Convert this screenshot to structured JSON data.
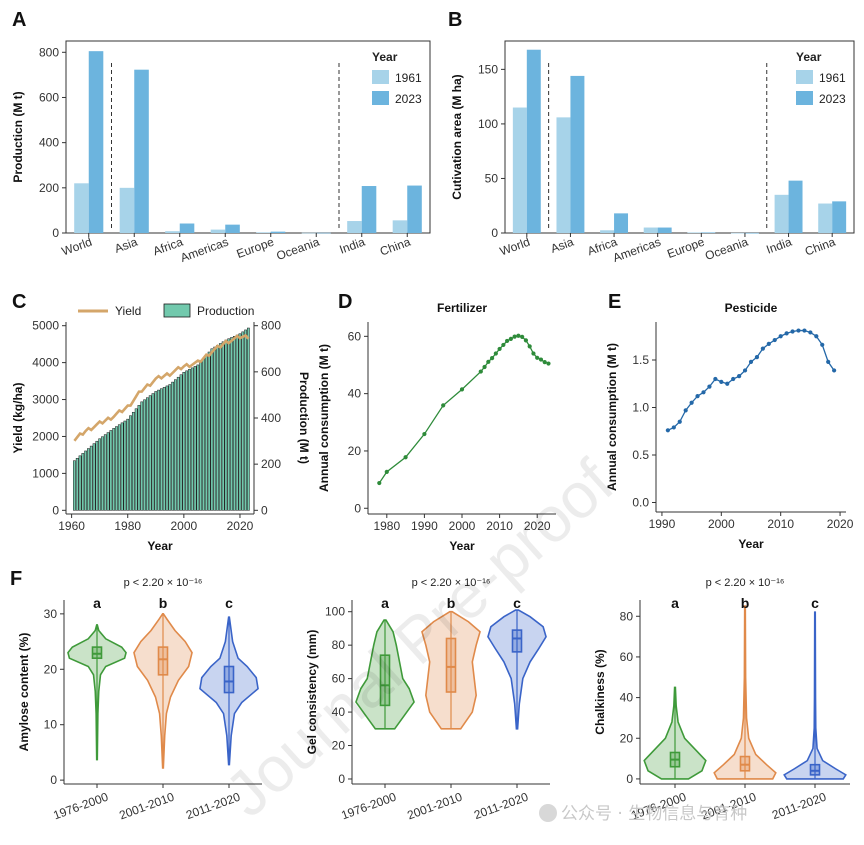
{
  "panel_labels": {
    "a": "A",
    "b": "B",
    "c": "C",
    "d": "D",
    "e": "E",
    "f": "F"
  },
  "watermark": "Journal Pre-proof",
  "wechat_caption": "公众号 · 生物信息与育种",
  "colors": {
    "light_blue": "#a7d3e9",
    "blue": "#6cb4de",
    "yield": "#d4a66a",
    "production": "#72c9ad",
    "fert": "#2e8b3a",
    "pest": "#2468a8",
    "v1": "#3f9a3a",
    "v2": "#e08a4a",
    "v3": "#3a64c8"
  },
  "chart_data": [
    {
      "panel": "A",
      "type": "bar",
      "ylabel": "Producticn (M t)",
      "ylim": [
        0,
        850
      ],
      "yticks": [
        0,
        200,
        400,
        600,
        800
      ],
      "categories": [
        "World",
        "Asia",
        "Africa",
        "Americas",
        "Europe",
        "Oceania",
        "India",
        "China"
      ],
      "series": [
        {
          "name": "1961",
          "values": [
            220,
            200,
            8,
            15,
            3,
            1,
            53,
            56
          ]
        },
        {
          "name": "2023",
          "values": [
            805,
            723,
            42,
            37,
            6,
            1,
            208,
            210
          ]
        }
      ],
      "legend_title": "Year",
      "legend_position": "top-right"
    },
    {
      "panel": "B",
      "type": "bar",
      "ylabel": "Cutivation area (M ha)",
      "ylim": [
        0,
        176
      ],
      "yticks": [
        0,
        50,
        100,
        150
      ],
      "categories": [
        "World",
        "Asia",
        "Africa",
        "Americas",
        "Europe",
        "Oceania",
        "India",
        "China"
      ],
      "series": [
        {
          "name": "1961",
          "values": [
            115,
            106,
            2.5,
            5,
            0.5,
            0.1,
            35,
            27
          ]
        },
        {
          "name": "2023",
          "values": [
            168,
            144,
            18,
            5,
            0.5,
            0.1,
            48,
            29
          ]
        }
      ],
      "legend_title": "Year",
      "legend_position": "top-right"
    },
    {
      "panel": "C",
      "type": "bar",
      "xlabel": "Year",
      "ylabel": "Yield (kg/ha)",
      "ylabel_right": "Production (M t)",
      "xlim": [
        1958,
        2025
      ],
      "xticks": [
        1960,
        1980,
        2000,
        2020
      ],
      "ylim": [
        -100,
        5100
      ],
      "yticks": [
        0,
        1000,
        2000,
        3000,
        4000,
        5000
      ],
      "ylim_right": [
        -16,
        816
      ],
      "yticks_right": [
        0,
        200,
        400,
        600,
        800
      ],
      "legend": [
        "Yield",
        "Production"
      ],
      "legend_position": "top",
      "production_x": [
        1961,
        2023
      ],
      "production_anchors": [
        [
          1961,
          215
        ],
        [
          1970,
          310
        ],
        [
          1975,
          355
        ],
        [
          1980,
          395
        ],
        [
          1985,
          470
        ],
        [
          1990,
          515
        ],
        [
          1995,
          545
        ],
        [
          2000,
          598
        ],
        [
          2005,
          630
        ],
        [
          2010,
          700
        ],
        [
          2015,
          738
        ],
        [
          2020,
          765
        ],
        [
          2023,
          790
        ]
      ],
      "yield_anchors": [
        [
          1961,
          1900
        ],
        [
          1965,
          2150
        ],
        [
          1970,
          2350
        ],
        [
          1975,
          2550
        ],
        [
          1980,
          2800
        ],
        [
          1985,
          3250
        ],
        [
          1990,
          3550
        ],
        [
          1995,
          3700
        ],
        [
          2000,
          3900
        ],
        [
          2005,
          4000
        ],
        [
          2010,
          4300
        ],
        [
          2015,
          4550
        ],
        [
          2020,
          4700
        ],
        [
          2023,
          4700
        ]
      ]
    },
    {
      "panel": "D",
      "type": "line",
      "title": "Fertilizer",
      "xlabel": "Year",
      "ylabel": "Annual consumption (M t)",
      "xlim": [
        1975,
        2025
      ],
      "xticks": [
        1980,
        1990,
        2000,
        2010,
        2020
      ],
      "ylim": [
        -2,
        65
      ],
      "yticks": [
        0,
        20,
        40,
        60
      ],
      "x": [
        1978,
        1980,
        1985,
        1990,
        1995,
        2000,
        2005,
        2006,
        2007,
        2008,
        2009,
        2010,
        2011,
        2012,
        2013,
        2014,
        2015,
        2016,
        2017,
        2018,
        2019,
        2020,
        2021,
        2022,
        2023
      ],
      "y": [
        8.8,
        12.7,
        17.8,
        25.9,
        35.9,
        41.5,
        47.7,
        49.3,
        51.1,
        52.4,
        54.0,
        55.6,
        57.0,
        58.4,
        59.1,
        59.9,
        60.2,
        59.8,
        58.6,
        56.5,
        54.0,
        52.5,
        51.9,
        51.0,
        50.5
      ]
    },
    {
      "panel": "E",
      "type": "line",
      "title": "Pesticide",
      "xlabel": "Year",
      "ylabel": "Annual consumption (M t)",
      "xlim": [
        1989,
        2021
      ],
      "xticks": [
        1990,
        2000,
        2010,
        2020
      ],
      "ylim": [
        -0.1,
        1.9
      ],
      "yticks": [
        0.0,
        0.5,
        1.0,
        1.5
      ],
      "x": [
        1991,
        1992,
        1993,
        1994,
        1995,
        1996,
        1997,
        1998,
        1999,
        2000,
        2001,
        2002,
        2003,
        2004,
        2005,
        2006,
        2007,
        2008,
        2009,
        2010,
        2011,
        2012,
        2013,
        2014,
        2015,
        2016,
        2017,
        2018,
        2019
      ],
      "y": [
        0.76,
        0.79,
        0.85,
        0.97,
        1.05,
        1.12,
        1.16,
        1.22,
        1.3,
        1.27,
        1.25,
        1.3,
        1.33,
        1.39,
        1.48,
        1.53,
        1.62,
        1.67,
        1.71,
        1.75,
        1.78,
        1.8,
        1.81,
        1.81,
        1.79,
        1.75,
        1.66,
        1.48,
        1.39
      ]
    },
    {
      "panel": "F1",
      "type": "violin",
      "ylabel": "Amylose content (%)",
      "ylim": [
        -0.7,
        32.5
      ],
      "yticks": [
        0,
        10,
        20,
        30
      ],
      "categories": [
        "1976-2000",
        "2001-2010",
        "2011-2020"
      ],
      "p_text": "p < 2.20 × 10⁻¹⁶",
      "letters": [
        "a",
        "b",
        "c"
      ],
      "groups": [
        {
          "min": 3.7,
          "max": 28.0,
          "q1": 22.0,
          "median": 22.8,
          "q3": 24.0,
          "profile": [
            [
              3.7,
              0.01
            ],
            [
              12,
              0.03
            ],
            [
              16,
              0.06
            ],
            [
              19,
              0.12
            ],
            [
              20.5,
              0.3
            ],
            [
              22,
              0.95
            ],
            [
              23,
              1.0
            ],
            [
              24,
              0.85
            ],
            [
              25.5,
              0.3
            ],
            [
              27,
              0.06
            ],
            [
              28,
              0.01
            ]
          ]
        },
        {
          "min": 2.2,
          "max": 30.0,
          "q1": 19.0,
          "median": 21.8,
          "q3": 24.0,
          "profile": [
            [
              2.2,
              0.01
            ],
            [
              8,
              0.05
            ],
            [
              12,
              0.1
            ],
            [
              15,
              0.22
            ],
            [
              18,
              0.45
            ],
            [
              20.5,
              0.75
            ],
            [
              23,
              0.85
            ],
            [
              25,
              0.65
            ],
            [
              27,
              0.35
            ],
            [
              29,
              0.12
            ],
            [
              30,
              0.01
            ]
          ]
        },
        {
          "min": 2.8,
          "max": 29.4,
          "q1": 15.8,
          "median": 17.8,
          "q3": 20.5,
          "profile": [
            [
              2.8,
              0.01
            ],
            [
              8,
              0.06
            ],
            [
              12,
              0.15
            ],
            [
              14,
              0.35
            ],
            [
              16.5,
              0.8
            ],
            [
              18.5,
              0.75
            ],
            [
              20.5,
              0.5
            ],
            [
              22,
              0.25
            ],
            [
              25,
              0.1
            ],
            [
              29.4,
              0.01
            ]
          ]
        }
      ]
    },
    {
      "panel": "F2",
      "type": "violin",
      "ylabel": "Gel consistency (mm)",
      "ylim": [
        -3,
        107
      ],
      "yticks": [
        0,
        20,
        40,
        60,
        80,
        100
      ],
      "categories": [
        "1976-2000",
        "2001-2010",
        "2011-2020"
      ],
      "p_text": "p < 2.20 × 10⁻¹⁶",
      "letters": [
        "a",
        "b",
        "c"
      ],
      "groups": [
        {
          "min": 30,
          "max": 95,
          "q1": 44,
          "median": 56,
          "q3": 74,
          "profile": [
            [
              30,
              0.3
            ],
            [
              38,
              0.6
            ],
            [
              46,
              0.9
            ],
            [
              54,
              0.75
            ],
            [
              60,
              0.55
            ],
            [
              70,
              0.45
            ],
            [
              80,
              0.35
            ],
            [
              88,
              0.25
            ],
            [
              95,
              0.03
            ]
          ]
        },
        {
          "min": 30,
          "max": 100,
          "q1": 52,
          "median": 67,
          "q3": 84,
          "profile": [
            [
              30,
              0.25
            ],
            [
              40,
              0.55
            ],
            [
              50,
              0.65
            ],
            [
              60,
              0.6
            ],
            [
              70,
              0.55
            ],
            [
              80,
              0.65
            ],
            [
              88,
              0.75
            ],
            [
              94,
              0.45
            ],
            [
              100,
              0.03
            ]
          ]
        },
        {
          "min": 30,
          "max": 101,
          "q1": 76,
          "median": 84,
          "q3": 89,
          "profile": [
            [
              30,
              0.02
            ],
            [
              45,
              0.08
            ],
            [
              60,
              0.2
            ],
            [
              70,
              0.45
            ],
            [
              78,
              0.75
            ],
            [
              85,
              1.0
            ],
            [
              91,
              0.9
            ],
            [
              97,
              0.45
            ],
            [
              101,
              0.05
            ]
          ]
        }
      ]
    },
    {
      "panel": "F3",
      "type": "violin",
      "ylabel": "Chalkiness (%)",
      "ylim": [
        -2.5,
        88
      ],
      "yticks": [
        0,
        20,
        40,
        60,
        80
      ],
      "categories": [
        "1976-2000",
        "2001-2010",
        "2011-2020"
      ],
      "p_text": "p < 2.20 × 10⁻¹⁶",
      "letters": [
        "a",
        "b",
        "c"
      ],
      "groups": [
        {
          "min": 0,
          "max": 45,
          "q1": 6,
          "median": 9.5,
          "q3": 13,
          "profile": [
            [
              0,
              0.35
            ],
            [
              4,
              0.7
            ],
            [
              9,
              0.8
            ],
            [
              14,
              0.55
            ],
            [
              20,
              0.25
            ],
            [
              28,
              0.08
            ],
            [
              36,
              0.03
            ],
            [
              45,
              0.01
            ]
          ]
        },
        {
          "min": 0,
          "max": 85,
          "q1": 4,
          "median": 7,
          "q3": 11,
          "profile": [
            [
              0,
              0.9
            ],
            [
              3,
              1.0
            ],
            [
              7,
              0.7
            ],
            [
              12,
              0.35
            ],
            [
              20,
              0.12
            ],
            [
              30,
              0.05
            ],
            [
              50,
              0.02
            ],
            [
              85,
              0.01
            ]
          ]
        },
        {
          "min": 0,
          "max": 82,
          "q1": 2,
          "median": 4,
          "q3": 7,
          "profile": [
            [
              0,
              1.1
            ],
            [
              2,
              1.2
            ],
            [
              5,
              0.8
            ],
            [
              9,
              0.3
            ],
            [
              15,
              0.08
            ],
            [
              25,
              0.03
            ],
            [
              40,
              0.02
            ],
            [
              82,
              0.01
            ]
          ]
        }
      ]
    }
  ]
}
